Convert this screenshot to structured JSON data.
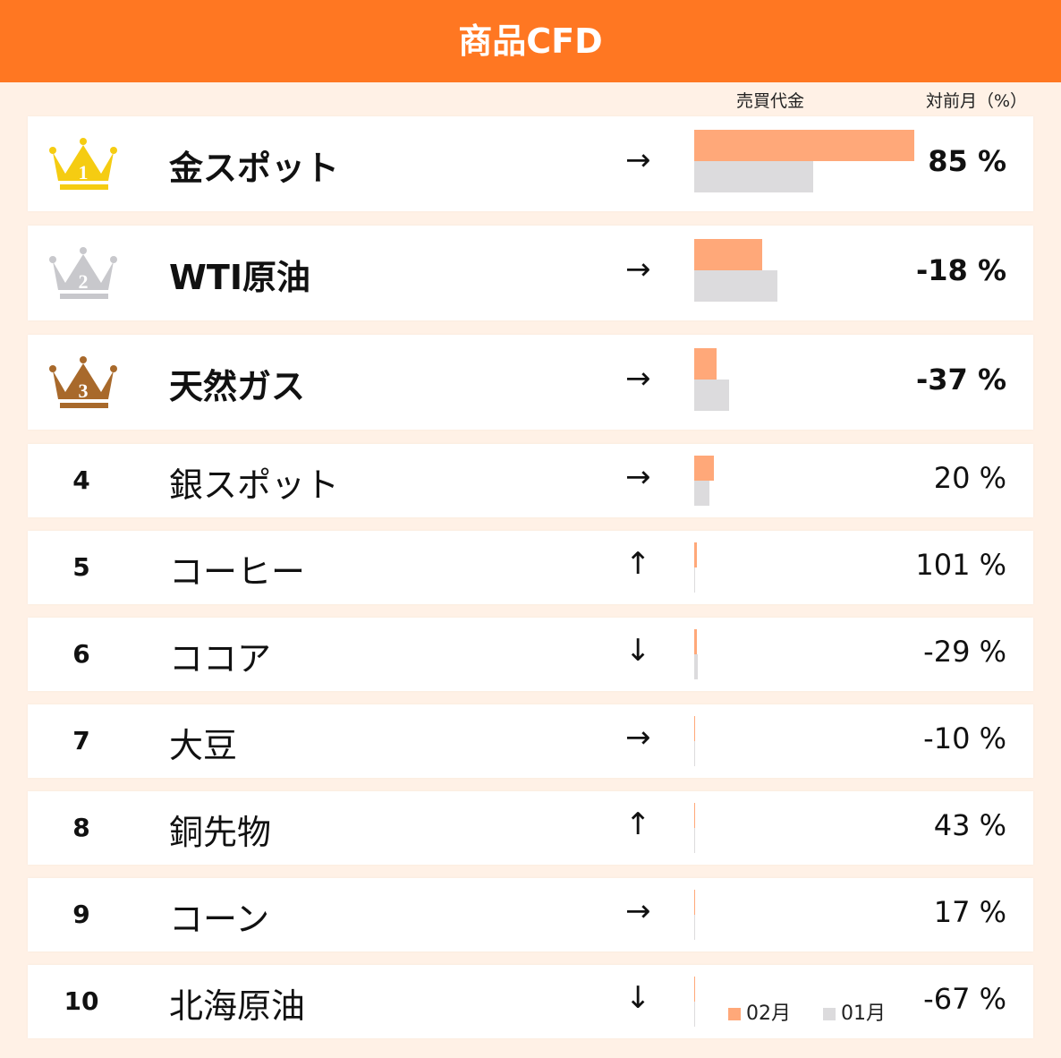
{
  "title": "商品CFD",
  "columns": {
    "volume": "売買代金",
    "change": "対前月（%）"
  },
  "colors": {
    "header": "#ff7722",
    "feb": "#ffa879",
    "jan": "#dcdbdd",
    "gold": "#f5cc12",
    "silver": "#c8c8cc",
    "bronze": "#a8692b"
  },
  "chart_data": {
    "type": "bar",
    "orientation": "horizontal",
    "categories": [
      "金スポット",
      "WTI原油",
      "天然ガス",
      "銀スポット",
      "コーヒー",
      "ココア",
      "大豆",
      "銅先物",
      "コーン",
      "北海原油"
    ],
    "series": [
      {
        "name": "02月",
        "values": [
          100,
          31,
          10,
          9,
          1.2,
          1.2,
          0.4,
          0.4,
          0.4,
          0.4
        ]
      },
      {
        "name": "01月",
        "values": [
          54,
          38,
          16,
          7,
          0.4,
          1.6,
          0.4,
          0.4,
          0.4,
          0.4
        ]
      }
    ],
    "legend": "bottom-right"
  },
  "rows": [
    {
      "rank": "1",
      "name": "金スポット",
      "arrow": "→",
      "change": "85 %"
    },
    {
      "rank": "2",
      "name": "WTI原油",
      "arrow": "→",
      "change": "-18 %"
    },
    {
      "rank": "3",
      "name": "天然ガス",
      "arrow": "→",
      "change": "-37 %"
    },
    {
      "rank": "4",
      "name": "銀スポット",
      "arrow": "→",
      "change": "20 %"
    },
    {
      "rank": "5",
      "name": "コーヒー",
      "arrow": "↑",
      "change": "101 %"
    },
    {
      "rank": "6",
      "name": "ココア",
      "arrow": "↓",
      "change": "-29 %"
    },
    {
      "rank": "7",
      "name": "大豆",
      "arrow": "→",
      "change": "-10 %"
    },
    {
      "rank": "8",
      "name": "銅先物",
      "arrow": "↑",
      "change": "43 %"
    },
    {
      "rank": "9",
      "name": "コーン",
      "arrow": "→",
      "change": "17 %"
    },
    {
      "rank": "10",
      "name": "北海原油",
      "arrow": "↓",
      "change": "-67 %"
    }
  ],
  "legend": {
    "feb": "02月",
    "jan": "01月"
  }
}
